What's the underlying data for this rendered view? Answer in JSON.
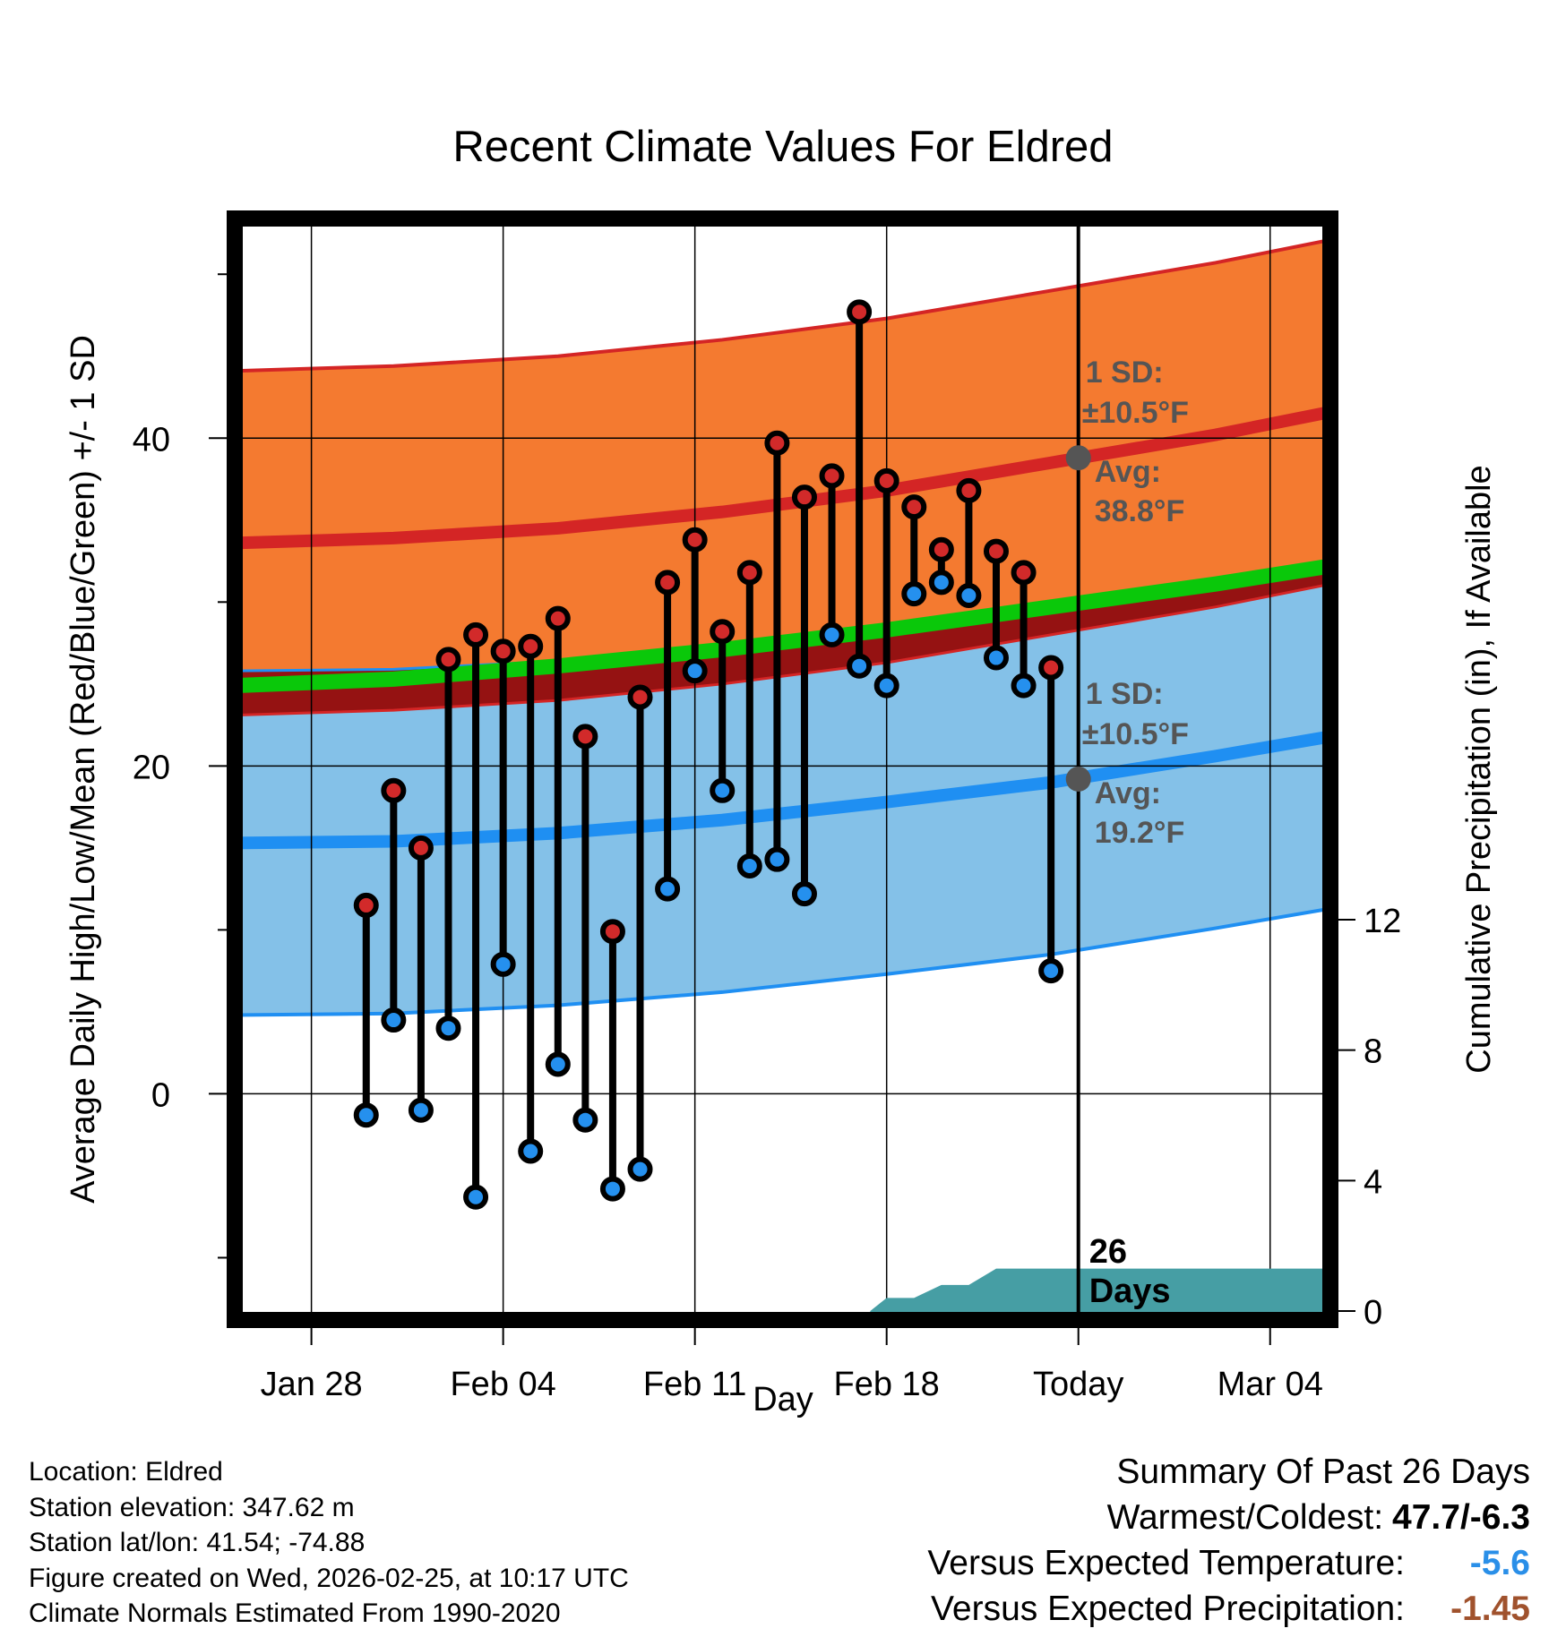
{
  "chart_data": {
    "type": "line",
    "title": "Recent Climate Values For Eldred",
    "xlabel": "Day",
    "ylabel": "Average Daily High/Low/Mean (Red/Blue/Green) +/- 1 SD",
    "y2label": "Cumulative Precipitation (in), If Available",
    "xlim": [
      -2.8,
      37.2
    ],
    "ylim": [
      -13.8,
      53.4
    ],
    "y2lim": [
      0,
      33.5
    ],
    "x_ticks": [
      0,
      7,
      14,
      21,
      28,
      35
    ],
    "x_tick_labels": [
      "Jan 28",
      "Feb 04",
      "Feb 11",
      "Feb 18",
      "Today",
      "Mar 04"
    ],
    "y_ticks": [
      0,
      20,
      40
    ],
    "y_tick_labels": [
      "0",
      "20",
      "40"
    ],
    "y2_ticks": [
      0,
      4,
      8,
      12
    ],
    "y2_tick_labels": [
      "0",
      "4",
      "8",
      "12"
    ],
    "today_x": 28,
    "days_label": "26",
    "days_word": "Days",
    "colors": {
      "high_band": "#f47a30",
      "high_line": "#d42525",
      "low_band": "#84c1e8",
      "low_line": "#1f8ff2",
      "mean_line": "#0ac80a",
      "overlap": "#951212",
      "high_dot": "#d22a2a",
      "low_dot": "#2590ee",
      "precip": "#469ea4",
      "annotation": "#555555"
    },
    "normal_x": [
      -2.8,
      3,
      9,
      15,
      21,
      27,
      33,
      37.2
    ],
    "normal_high": [
      33.6,
      33.9,
      34.5,
      35.5,
      36.8,
      38.5,
      40.2,
      41.6
    ],
    "normal_low": [
      15.3,
      15.4,
      15.9,
      16.7,
      17.8,
      19.0,
      20.6,
      21.8
    ],
    "high_sd": 10.5,
    "low_sd": 10.5,
    "normal_mean": [
      24.9,
      25.3,
      26.1,
      27.1,
      28.3,
      29.7,
      31.1,
      32.2
    ],
    "daily_x": [
      2,
      3,
      4,
      5,
      6,
      7,
      8,
      9,
      10,
      11,
      12,
      13,
      14,
      15,
      16,
      17,
      18,
      19,
      20,
      21,
      22,
      23,
      24,
      25,
      26,
      27
    ],
    "daily_high": [
      11.5,
      18.5,
      15.0,
      26.5,
      28.0,
      27.0,
      27.3,
      29.0,
      21.8,
      9.9,
      24.2,
      31.2,
      33.8,
      28.2,
      31.8,
      39.7,
      36.4,
      37.7,
      47.7,
      37.4,
      35.8,
      33.2,
      36.8,
      33.1,
      31.8,
      26.0
    ],
    "daily_low": [
      -1.3,
      4.5,
      -1.0,
      4.0,
      -6.3,
      7.9,
      -3.5,
      1.8,
      -1.6,
      -5.8,
      -4.6,
      12.5,
      25.8,
      18.5,
      13.9,
      14.3,
      12.2,
      28.0,
      26.1,
      24.9,
      30.5,
      31.2,
      30.4,
      26.6,
      24.9,
      7.5
    ],
    "precip_x": [
      20.4,
      21.0,
      22.0,
      23.0,
      24.0,
      25.0,
      26.0,
      27.0,
      28.0,
      37.2
    ],
    "precip": [
      0,
      0.4,
      0.4,
      0.8,
      0.8,
      1.3,
      1.3,
      1.3,
      1.3,
      1.3
    ],
    "annotation_high": {
      "sd_title": "1 SD:",
      "sd_value": "±10.5°F",
      "avg_title": "Avg:",
      "avg_value": "38.8°F",
      "avg": 38.8
    },
    "annotation_low": {
      "sd_title": "1 SD:",
      "sd_value": "±10.5°F",
      "avg_title": "Avg:",
      "avg_value": "19.2°F",
      "avg": 19.2
    }
  },
  "info": {
    "location": "Location: Eldred",
    "elevation": "Station elevation: 347.62 m",
    "latlon": "Station lat/lon: 41.54; -74.88",
    "created": "Figure created on Wed, 2026-02-25, at 10:17 UTC",
    "normals": "Climate Normals Estimated From 1990-2020"
  },
  "summary": {
    "title": "Summary Of Past 26 Days",
    "warmest_label": "Warmest/Coldest:",
    "warmest_value": "47.7/-6.3",
    "temp_label": "Versus Expected Temperature:",
    "temp_value": "-5.6",
    "temp_color": "#2a8fe8",
    "precip_label": "Versus Expected Precipitation:",
    "precip_value": "-1.45",
    "precip_color": "#a0522d"
  }
}
